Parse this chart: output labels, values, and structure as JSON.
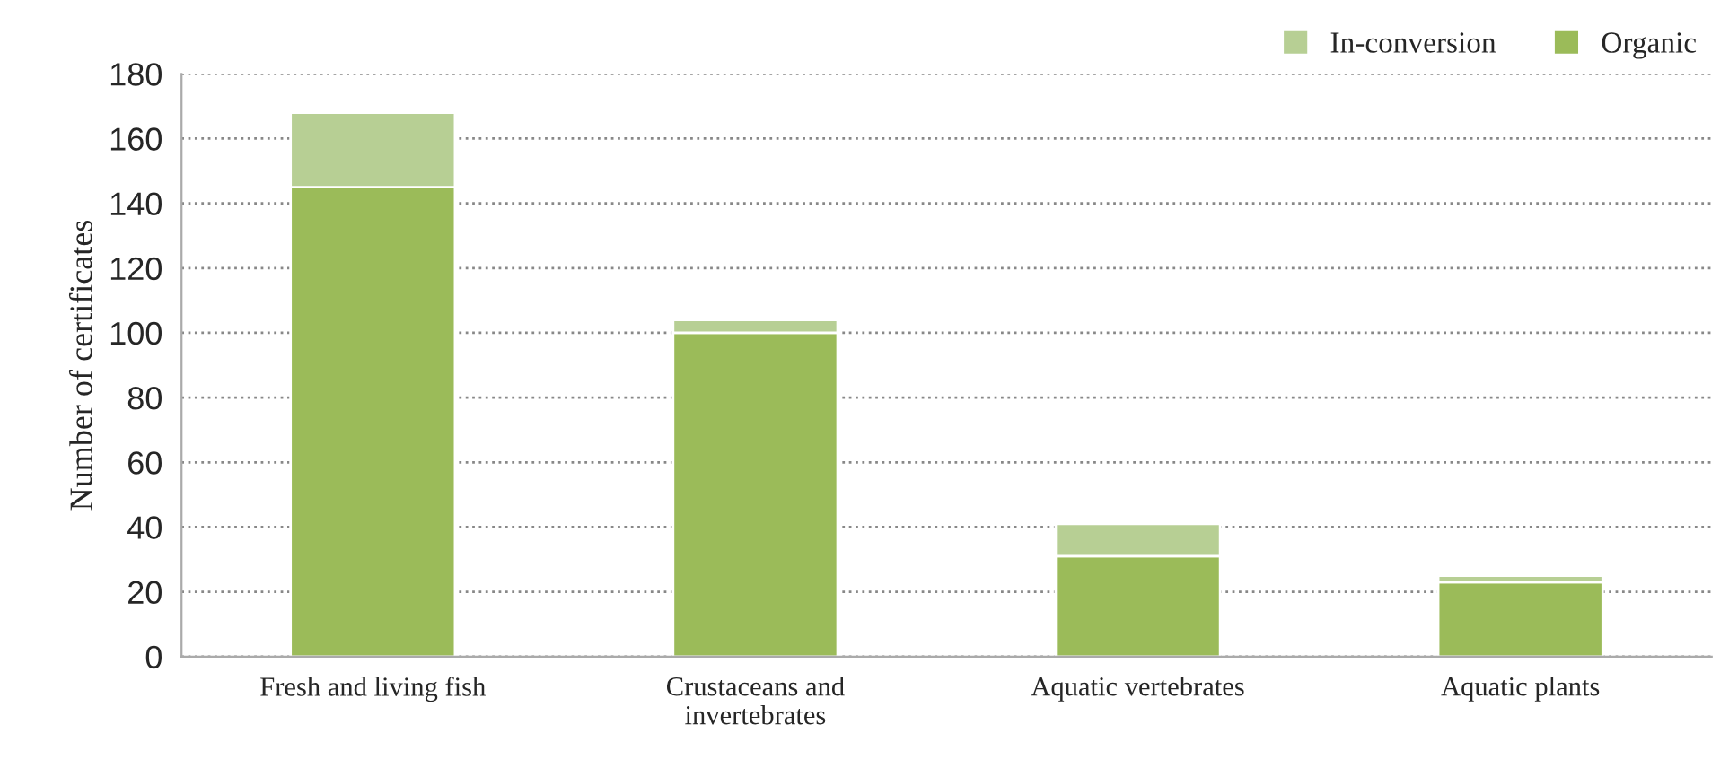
{
  "chart_data": {
    "type": "bar",
    "stacked": true,
    "ylabel": "Number of certificates",
    "categories": [
      "Fresh and living fish",
      "Crustaceans and\ninvertebrates",
      "Aquatic vertebrates",
      "Aquatic plants"
    ],
    "series": [
      {
        "name": "Organic",
        "color": "#9bbb59",
        "values": [
          145,
          100,
          31,
          23
        ]
      },
      {
        "name": "In-conversion",
        "color": "#b7cf94",
        "values": [
          23,
          4,
          10,
          2
        ]
      }
    ],
    "ylim": [
      0,
      180
    ],
    "yticks": [
      0,
      20,
      40,
      60,
      80,
      100,
      120,
      140,
      160,
      180
    ],
    "grid": "y",
    "legend": "top right"
  }
}
